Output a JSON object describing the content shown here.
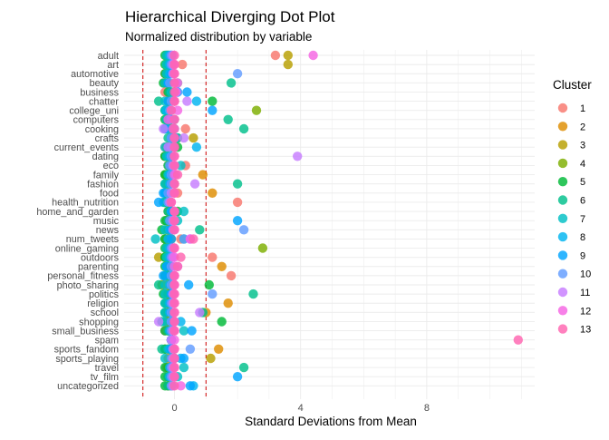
{
  "chart_data": {
    "type": "scatter",
    "title": "Hierarchical Diverging Dot Plot",
    "subtitle": "Normalized distribution by variable",
    "xlabel": "Standard Deviations from Mean",
    "ylabel": "",
    "xlim": [
      -1.1,
      11.3
    ],
    "x_ticks": [
      0,
      4,
      8
    ],
    "x_tick_labels": [
      "0",
      "4",
      "8"
    ],
    "reference_lines": [
      -1,
      1
    ],
    "reference_line_color": "#cc0000",
    "grid": true,
    "legend_position": "right",
    "legend_title": "Cluster",
    "categories": [
      "adult",
      "art",
      "automotive",
      "beauty",
      "business",
      "chatter",
      "college_uni",
      "computers",
      "cooking",
      "crafts",
      "current_events",
      "dating",
      "eco",
      "family",
      "fashion",
      "food",
      "health_nutrition",
      "home_and_garden",
      "music",
      "news",
      "num_tweets",
      "online_gaming",
      "outdoors",
      "parenting",
      "personal_fitness",
      "photo_sharing",
      "politics",
      "religion",
      "school",
      "shopping",
      "small_business",
      "spam",
      "sports_fandom",
      "sports_playing",
      "travel",
      "tv_film",
      "uncategorized"
    ],
    "clusters": [
      {
        "name": "1",
        "color": "#F8766D"
      },
      {
        "name": "2",
        "color": "#DE8C00"
      },
      {
        "name": "3",
        "color": "#B79F00"
      },
      {
        "name": "4",
        "color": "#7CAE00"
      },
      {
        "name": "5",
        "color": "#00BA38"
      },
      {
        "name": "6",
        "color": "#00C08B"
      },
      {
        "name": "7",
        "color": "#00BFC4"
      },
      {
        "name": "8",
        "color": "#00B4F0"
      },
      {
        "name": "9",
        "color": "#00A5FF"
      },
      {
        "name": "10",
        "color": "#619CFF"
      },
      {
        "name": "11",
        "color": "#C77CFF"
      },
      {
        "name": "12",
        "color": "#F564E3"
      },
      {
        "name": "13",
        "color": "#FF64B0"
      }
    ],
    "values": [
      [
        3.2,
        -0.25,
        3.6,
        -0.2,
        -0.3,
        -0.2,
        -0.25,
        -0.15,
        -0.1,
        -0.1,
        -0.05,
        4.4,
        0.0
      ],
      [
        0.25,
        -0.2,
        3.6,
        -0.2,
        -0.3,
        -0.2,
        -0.25,
        -0.15,
        -0.1,
        -0.1,
        -0.05,
        0.0,
        0.0
      ],
      [
        -0.3,
        -0.15,
        -0.2,
        -0.2,
        -0.3,
        -0.2,
        -0.25,
        -0.15,
        -0.1,
        2.0,
        -0.05,
        0.0,
        0.0
      ],
      [
        -0.3,
        0.1,
        -0.3,
        -0.2,
        -0.35,
        1.8,
        -0.3,
        -0.2,
        -0.2,
        -0.15,
        0.1,
        0.05,
        0.0
      ],
      [
        -0.3,
        0.0,
        -0.1,
        -0.15,
        -0.2,
        -0.15,
        -0.1,
        0.1,
        0.4,
        0.1,
        0.05,
        0.05,
        0.0
      ],
      [
        0.0,
        -0.2,
        -0.2,
        -0.2,
        1.2,
        -0.5,
        -0.3,
        0.7,
        -0.2,
        -0.1,
        0.4,
        0.0,
        0.0
      ],
      [
        -0.25,
        -0.2,
        -0.2,
        2.6,
        -0.3,
        -0.25,
        -0.3,
        -0.25,
        1.2,
        -0.15,
        -0.1,
        0.1,
        -0.1
      ],
      [
        -0.2,
        -0.2,
        -0.25,
        0.0,
        -0.3,
        1.7,
        -0.25,
        -0.1,
        -0.15,
        -0.1,
        0.0,
        -0.2,
        0.0
      ],
      [
        0.35,
        -0.1,
        -0.1,
        -0.2,
        -0.3,
        2.2,
        -0.3,
        -0.2,
        -0.3,
        0.0,
        -0.35,
        -0.05,
        0.0
      ],
      [
        0.0,
        0.0,
        0.6,
        -0.1,
        0.1,
        -0.2,
        -0.1,
        0.05,
        -0.1,
        -0.1,
        0.3,
        0.0,
        0.0
      ],
      [
        -0.3,
        -0.2,
        -0.1,
        -0.25,
        0.1,
        0.0,
        -0.3,
        0.7,
        -0.2,
        -0.1,
        -0.2,
        0.0,
        0.0
      ],
      [
        -0.3,
        -0.2,
        -0.2,
        -0.3,
        -0.3,
        -0.2,
        -0.25,
        -0.15,
        -0.1,
        -0.1,
        3.9,
        0.0,
        0.0
      ],
      [
        0.35,
        -0.2,
        -0.2,
        -0.1,
        -0.1,
        -0.2,
        0.2,
        -0.1,
        -0.1,
        -0.15,
        -0.05,
        0.0,
        0.0
      ],
      [
        -0.2,
        0.9,
        -0.2,
        -0.3,
        -0.3,
        -0.2,
        -0.2,
        -0.15,
        -0.1,
        -0.1,
        0.05,
        0.0,
        0.1
      ],
      [
        -0.25,
        -0.2,
        -0.2,
        0.0,
        -0.3,
        2.0,
        -0.3,
        -0.15,
        -0.1,
        -0.1,
        0.65,
        0.0,
        0.0
      ],
      [
        0.1,
        1.2,
        -0.2,
        -0.3,
        -0.3,
        -0.2,
        -0.3,
        -0.3,
        -0.35,
        -0.2,
        -0.1,
        0.0,
        0.0
      ],
      [
        2.0,
        -0.3,
        -0.3,
        -0.3,
        -0.3,
        -0.3,
        -0.35,
        -0.2,
        -0.5,
        -0.2,
        -0.15,
        -0.1,
        -0.1
      ],
      [
        0.0,
        -0.1,
        -0.2,
        -0.2,
        0.1,
        -0.2,
        0.3,
        -0.1,
        -0.1,
        0.0,
        0.0,
        0.0,
        0.0
      ],
      [
        -0.25,
        -0.2,
        -0.2,
        -0.25,
        -0.3,
        -0.2,
        0.1,
        -0.1,
        2.0,
        -0.15,
        -0.05,
        0.0,
        0.0
      ],
      [
        -0.2,
        -0.15,
        -0.2,
        -0.2,
        -0.4,
        0.8,
        -0.3,
        -0.15,
        -0.1,
        2.2,
        -0.05,
        0.0,
        0.0
      ],
      [
        0.2,
        -0.1,
        -0.3,
        -0.2,
        -0.3,
        0.3,
        -0.6,
        -0.2,
        -0.1,
        0.3,
        0.5,
        0.5,
        0.6
      ],
      [
        -0.25,
        -0.2,
        -0.2,
        2.8,
        -0.3,
        -0.2,
        -0.25,
        -0.15,
        -0.1,
        -0.1,
        -0.05,
        0.0,
        0.0
      ],
      [
        1.2,
        -0.2,
        -0.5,
        -0.3,
        -0.3,
        -0.2,
        -0.25,
        -0.15,
        -0.1,
        -0.1,
        -0.05,
        0.0,
        0.2
      ],
      [
        -0.1,
        1.5,
        -0.2,
        -0.2,
        -0.3,
        -0.2,
        -0.25,
        -0.1,
        -0.25,
        -0.1,
        0.1,
        0.0,
        0.1
      ],
      [
        1.8,
        -0.2,
        -0.2,
        -0.2,
        -0.3,
        -0.2,
        -0.25,
        -0.1,
        -0.35,
        -0.1,
        0.0,
        0.0,
        0.0
      ],
      [
        -0.3,
        -0.15,
        -0.2,
        -0.4,
        1.1,
        -0.5,
        -0.3,
        -0.15,
        0.45,
        -0.1,
        0.0,
        0.0,
        0.0
      ],
      [
        -0.2,
        -0.1,
        -0.2,
        -0.2,
        -0.35,
        2.5,
        -0.3,
        -0.1,
        -0.1,
        1.2,
        -0.05,
        0.0,
        0.0
      ],
      [
        -0.25,
        1.7,
        -0.2,
        -0.2,
        -0.3,
        -0.2,
        -0.3,
        -0.15,
        -0.1,
        -0.1,
        -0.05,
        0.0,
        0.0
      ],
      [
        -0.25,
        1.0,
        -0.2,
        -0.2,
        -0.3,
        0.9,
        -0.3,
        -0.15,
        -0.1,
        -0.1,
        0.8,
        0.0,
        0.0
      ],
      [
        0.0,
        -0.2,
        -0.2,
        -0.25,
        1.5,
        -0.4,
        -0.3,
        0.2,
        -0.1,
        -0.1,
        -0.5,
        0.0,
        0.0
      ],
      [
        -0.3,
        -0.2,
        -0.2,
        -0.1,
        -0.3,
        -0.2,
        0.3,
        -0.15,
        0.55,
        -0.1,
        -0.05,
        0.0,
        0.0
      ],
      [
        -0.1,
        -0.1,
        -0.1,
        -0.1,
        -0.1,
        -0.1,
        -0.1,
        -0.1,
        -0.1,
        -0.1,
        -0.1,
        0.0,
        10.9
      ],
      [
        -0.2,
        1.4,
        -0.2,
        -0.3,
        -0.3,
        -0.4,
        -0.2,
        -0.15,
        -0.1,
        0.5,
        -0.05,
        0.0,
        0.0
      ],
      [
        -0.1,
        -0.2,
        1.15,
        -0.1,
        -0.1,
        0.0,
        -0.3,
        0.2,
        0.3,
        -0.1,
        -0.05,
        0.0,
        0.0
      ],
      [
        -0.25,
        -0.2,
        -0.2,
        -0.2,
        -0.3,
        2.2,
        0.3,
        -0.15,
        -0.1,
        -0.1,
        -0.05,
        0.0,
        0.0
      ],
      [
        -0.1,
        -0.2,
        -0.2,
        -0.2,
        -0.3,
        -0.2,
        0.1,
        -0.15,
        2.0,
        -0.1,
        -0.05,
        0.0,
        0.0
      ],
      [
        -0.2,
        -0.1,
        -0.2,
        -0.2,
        -0.3,
        -0.2,
        -0.1,
        0.6,
        0.5,
        -0.1,
        -0.05,
        0.2,
        0.0
      ]
    ]
  }
}
